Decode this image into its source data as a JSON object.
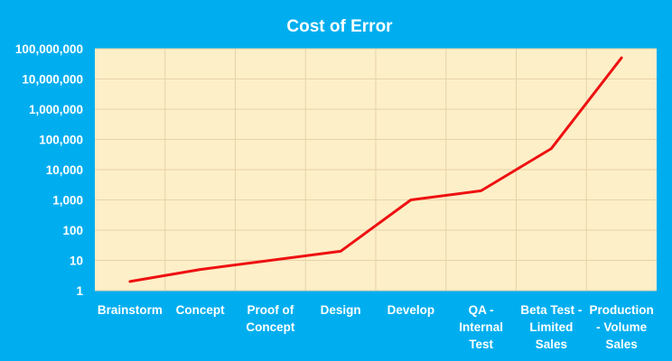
{
  "chart_data": {
    "type": "line",
    "title": "Cost of Error",
    "xlabel": "",
    "ylabel": "",
    "scale": "log",
    "ylim": [
      1,
      100000000
    ],
    "yticks": [
      "1",
      "10",
      "100",
      "1,000",
      "10,000",
      "100,000",
      "1,000,000",
      "10,000,000",
      "100,000,000"
    ],
    "categories": [
      "Brainstorm",
      "Concept",
      "Proof of Concept",
      "Design",
      "Develop",
      "QA - Internal Test",
      "Beta Test - Limited Sales",
      "Production - Volume Sales"
    ],
    "category_lines": [
      [
        "Brainstorm"
      ],
      [
        "Concept"
      ],
      [
        "Proof of",
        "Concept"
      ],
      [
        "Design"
      ],
      [
        "Develop"
      ],
      [
        "QA -",
        "Internal",
        "Test"
      ],
      [
        "Beta Test -",
        "Limited",
        "Sales"
      ],
      [
        "Production",
        "- Volume",
        "Sales"
      ]
    ],
    "values": [
      2,
      5,
      10,
      20,
      1000,
      2000,
      50000,
      50000000
    ],
    "grid": true,
    "legend": "none",
    "colors": {
      "background": "#00AEEF",
      "plot_area": "#FDEFC8",
      "grid": "#E6D2A8",
      "line": "#EE1111",
      "text": "#FFFFFF"
    }
  }
}
